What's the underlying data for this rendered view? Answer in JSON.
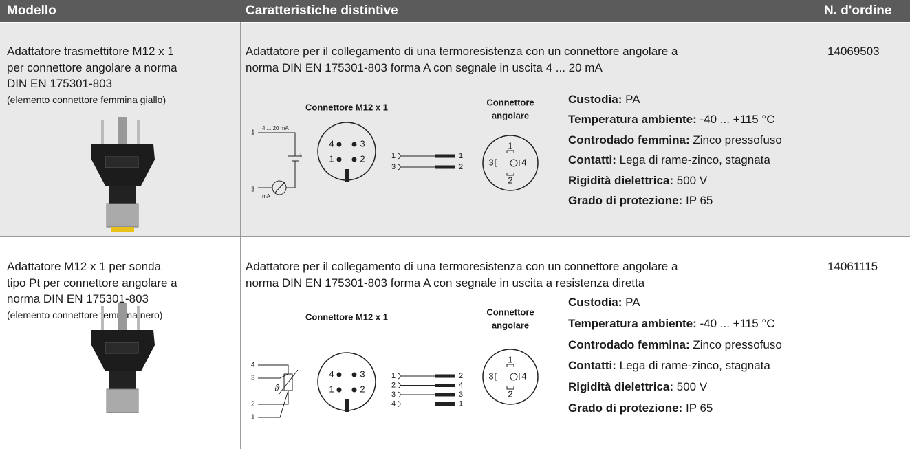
{
  "header": [
    "Modello",
    "Caratteristiche distintive",
    "N. d'ordine"
  ],
  "rows": [
    {
      "model": [
        "Adattatore trasmettitore M12 x 1",
        "per connettore angolare a norma",
        "DIN EN 175301-803"
      ],
      "model_note": "(elemento connettore femmina giallo)",
      "description": [
        "Adattatore per il collegamento di una termoresistenza con un connettore angolare a",
        "norma DIN EN 175301-803 forma A con segnale in uscita 4 ... 20 mA"
      ],
      "diagram": {
        "title": "Connettore M12 x 1",
        "angle_title": [
          "Connettore",
          "angolare"
        ],
        "wiring_labels": [
          "1",
          "4 ... 20 mA",
          "+",
          "−",
          "3",
          "mA"
        ],
        "m12_pins": [
          "4",
          "3",
          "1",
          "2"
        ],
        "bridge_in": [
          "1",
          "3"
        ],
        "bridge_out": [
          "1",
          "2"
        ],
        "angle_pins": [
          "1",
          "3",
          "4",
          "2"
        ]
      },
      "specs": [
        {
          "label": "Custodia:",
          "value": "PA"
        },
        {
          "label": "Temperatura ambiente:",
          "value": "-40 ... +115 °C"
        },
        {
          "label": "Controdado femmina:",
          "value": "Zinco pressofuso"
        },
        {
          "label": "Contatti:",
          "value": "Lega di rame-zinco, stagnata"
        },
        {
          "label": "Rigidità dielettrica:",
          "value": "500 V"
        },
        {
          "label": "Grado di protezione:",
          "value": "IP 65"
        }
      ],
      "order": "14069503"
    },
    {
      "model": [
        "Adattatore M12 x 1 per sonda",
        "tipo Pt per connettore angolare a",
        "norma DIN EN 175301-803"
      ],
      "model_note": "(elemento connettore femmina nero)",
      "description": [
        "Adattatore per il collegamento di una termoresistenza con un connettore angolare a",
        "norma DIN EN 175301-803 forma A con segnale in uscita a resistenza diretta"
      ],
      "diagram": {
        "title": "Connettore M12 x 1",
        "angle_title": [
          "Connettore",
          "angolare"
        ],
        "wiring_labels": [
          "4",
          "3",
          "2",
          "1",
          "ϑ"
        ],
        "m12_pins": [
          "4",
          "3",
          "1",
          "2"
        ],
        "bridge_in": [
          "1",
          "2",
          "3",
          "4"
        ],
        "bridge_out": [
          "2",
          "4",
          "3",
          "1"
        ],
        "angle_pins": [
          "1",
          "3",
          "4",
          "2"
        ]
      },
      "specs": [
        {
          "label": "Custodia:",
          "value": "PA"
        },
        {
          "label": "Temperatura ambiente:",
          "value": "-40 ... +115 °C"
        },
        {
          "label": "Controdado femmina:",
          "value": "Zinco pressofuso"
        },
        {
          "label": "Contatti:",
          "value": "Lega di rame-zinco, stagnata"
        },
        {
          "label": "Rigidità dielettrica:",
          "value": "500 V"
        },
        {
          "label": "Grado di protezione:",
          "value": "IP 65"
        }
      ],
      "order": "14061115"
    }
  ]
}
